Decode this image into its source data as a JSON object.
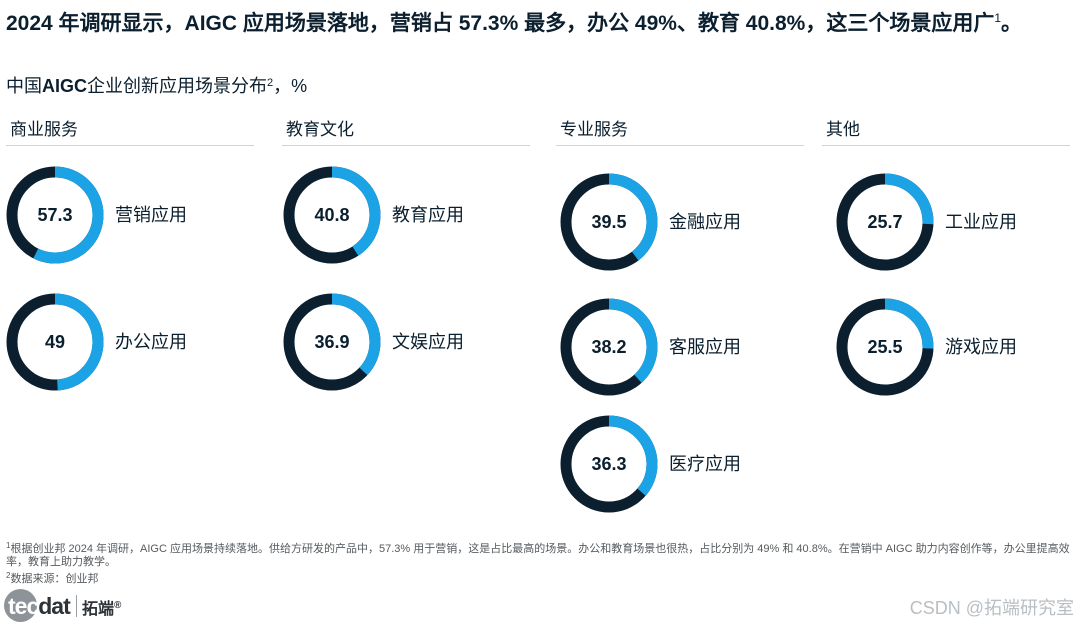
{
  "headline": {
    "text": "2024 年调研显示，AIGC 应用场景落地，营销占 57.3% 最多，办公 49%、教育 40.8%，这三个场景应用广",
    "footnote_mark": "1",
    "end": "。"
  },
  "subtitle": {
    "prefix": "中国",
    "bold": "AIGC",
    "text": "企业创新应用场景分布",
    "footnote_mark": "2",
    "unit": "，%"
  },
  "colors": {
    "accent": "#1ba3e6",
    "dark": "#0b1f2e",
    "text": "#0b1f2e"
  },
  "chart_data": {
    "type": "pie",
    "variant": "donut",
    "max": 100,
    "categories": [
      {
        "label": "商业服务",
        "items": [
          {
            "label": "营销应用",
            "value": 57.3
          },
          {
            "label": "办公应用",
            "value": 49
          }
        ]
      },
      {
        "label": "教育文化",
        "items": [
          {
            "label": "教育应用",
            "value": 40.8
          },
          {
            "label": "文娱应用",
            "value": 36.9
          }
        ]
      },
      {
        "label": "专业服务",
        "items": [
          {
            "label": "金融应用",
            "value": 39.5
          },
          {
            "label": "客服应用",
            "value": 38.2
          },
          {
            "label": "医疗应用",
            "value": 36.3
          }
        ]
      },
      {
        "label": "其他",
        "items": [
          {
            "label": "工业应用",
            "value": 25.7
          },
          {
            "label": "游戏应用",
            "value": 25.5
          }
        ]
      }
    ]
  },
  "footnotes": {
    "note1_mark": "1",
    "note1": "根据创业邦 2024 年调研，AIGC 应用场景持续落地。供给方研发的产品中，57.3% 用于营销，这是占比最高的场景。办公和教育场景也很热，占比分别为 49% 和 40.8%。在营销中 AIGC 助力内容创作等，办公里提高效率，教育上助力教学。",
    "note2_mark": "2",
    "note2": "数据来源：创业邦"
  },
  "logo": {
    "part_a": "tec",
    "part_b": "dat",
    "cn": "拓端",
    "reg": "®"
  },
  "watermark": "CSDN @拓端研究室"
}
